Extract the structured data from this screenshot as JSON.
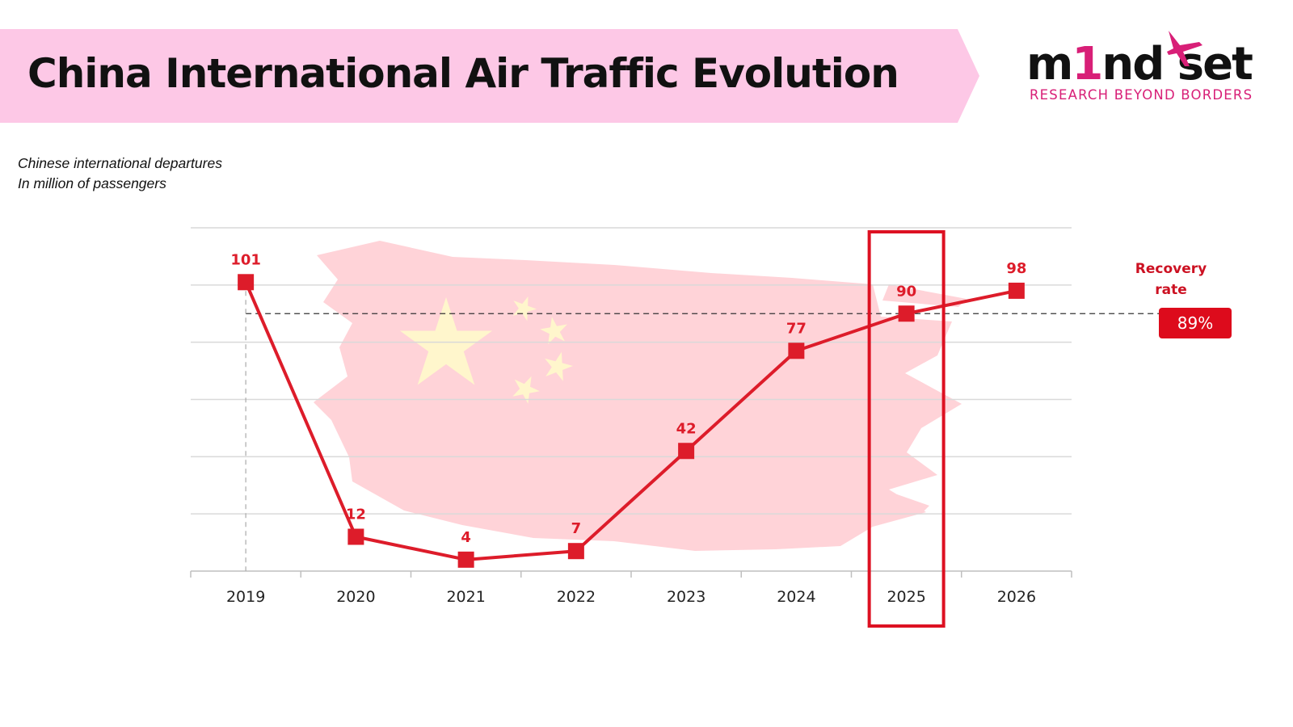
{
  "header": {
    "title": "China International Air Traffic Evolution"
  },
  "logo": {
    "word_start": "m",
    "word_accent": "1",
    "word_end": "nd set",
    "tagline": "RESEARCH BEYOND BORDERS"
  },
  "subtitle": {
    "line1": "Chinese international departures",
    "line2": "In million of passengers"
  },
  "recovery": {
    "label": "Recovery rate",
    "value": "89%"
  },
  "colors": {
    "banner": "#fdc8e6",
    "series": "#dd1c2a",
    "highlight": "#dd1122",
    "flag": "#ffd3d8",
    "star": "#fff6cc",
    "brand": "#d81f77"
  },
  "icons": {
    "logo": "plane-icon",
    "background": "china-flag-brush"
  },
  "chart_data": {
    "type": "line",
    "categories": [
      "2019",
      "2020",
      "2021",
      "2022",
      "2023",
      "2024",
      "2025",
      "2026"
    ],
    "series": [
      {
        "values": [
          101,
          12,
          4,
          7,
          42,
          77,
          90,
          98
        ]
      }
    ],
    "data_labels": [
      "101",
      "12",
      "4",
      "7",
      "42",
      "77",
      "90",
      "98"
    ],
    "ylim": [
      0,
      120
    ],
    "grid": true,
    "reference_line": 90,
    "highlight_category": "2025",
    "xlabel": "",
    "ylabel": ""
  }
}
